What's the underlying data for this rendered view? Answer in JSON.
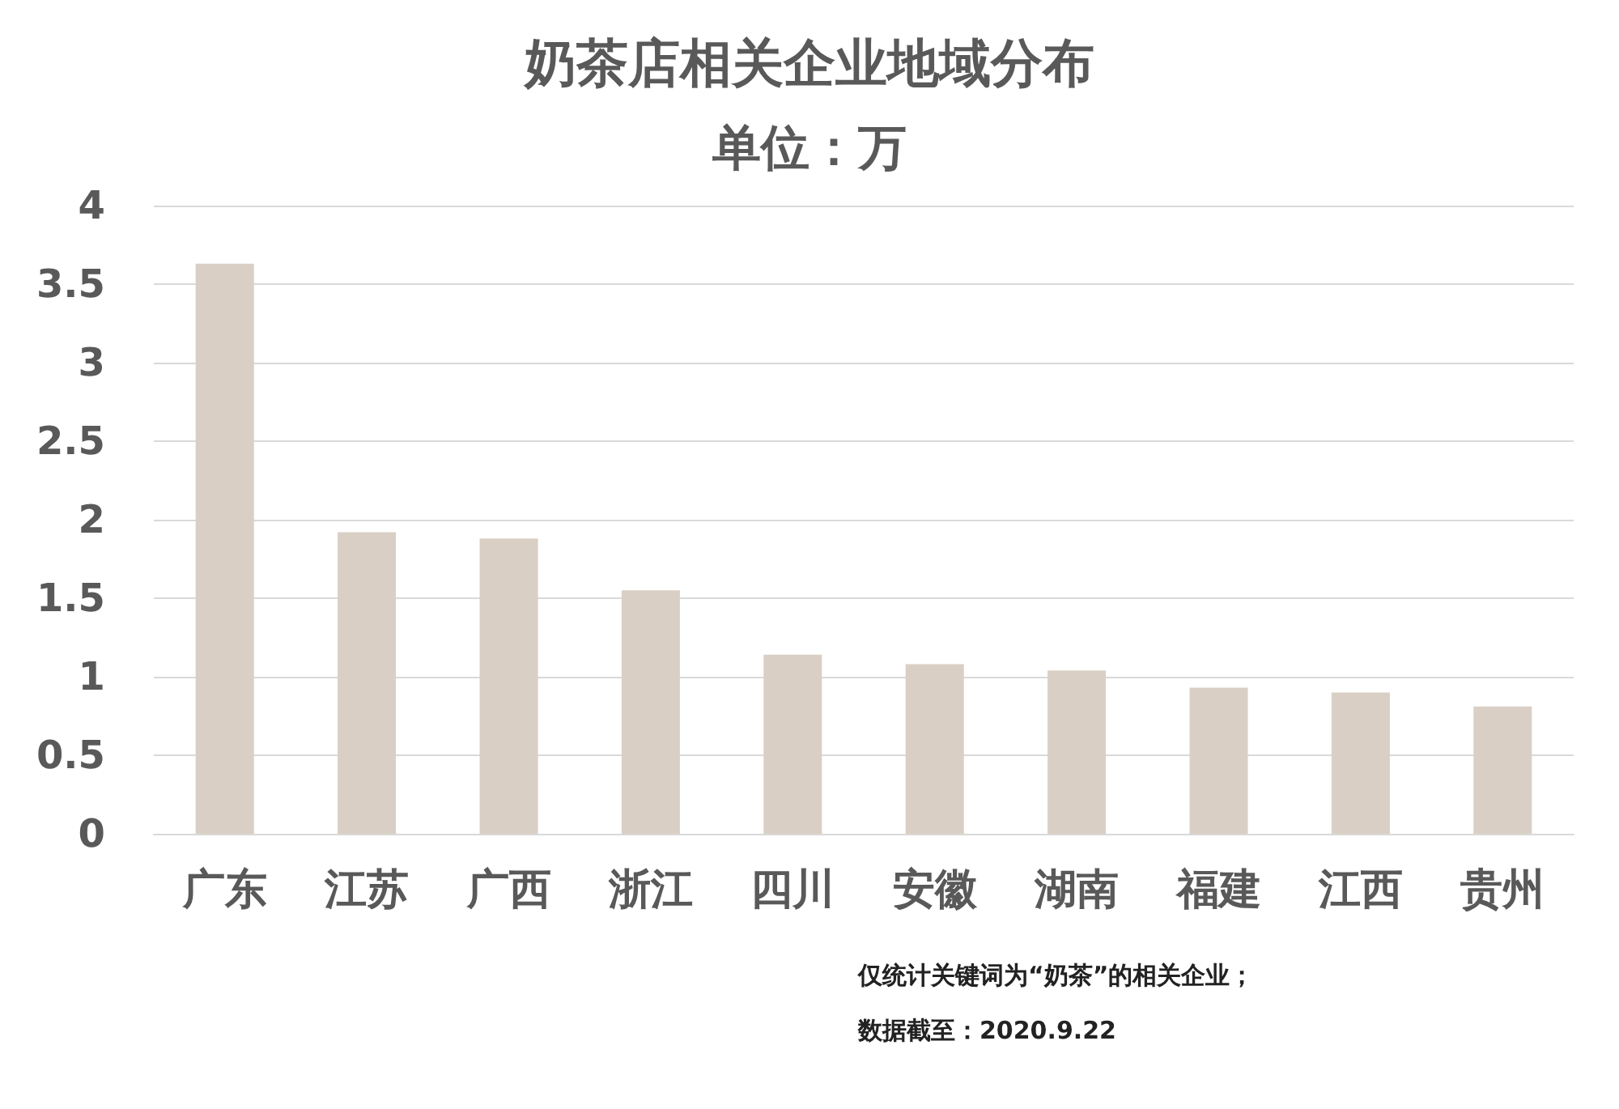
{
  "chart_data": {
    "type": "bar",
    "title": "奶茶店相关企业地域分布",
    "subtitle": "单位：万",
    "categories": [
      "广东",
      "江苏",
      "广西",
      "浙江",
      "四川",
      "安徽",
      "湖南",
      "福建",
      "江西",
      "贵州"
    ],
    "values": [
      3.63,
      1.92,
      1.88,
      1.55,
      1.14,
      1.08,
      1.04,
      0.93,
      0.9,
      0.81
    ],
    "color": "#d9cfc4",
    "ylim": [
      0,
      4
    ],
    "yticks": [
      0,
      0.5,
      1,
      1.5,
      2,
      2.5,
      3,
      3.5,
      4
    ],
    "grid": "y",
    "annotations": [
      "仅统计关键词为“奶茶”的相关企业；",
      "数据截至：2020.9.22"
    ]
  }
}
